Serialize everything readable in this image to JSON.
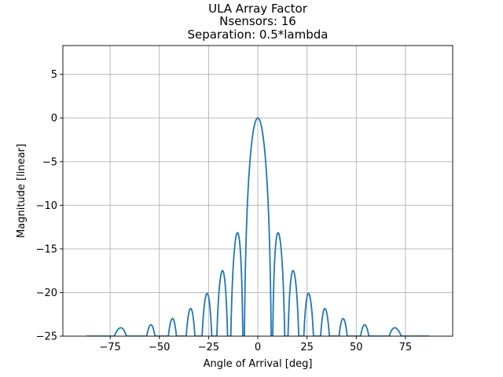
{
  "chart_data": {
    "type": "line",
    "title": [
      "ULA Array Factor",
      "Nsensors: 16",
      "Separation: 0.5*lambda"
    ],
    "xlabel": "Angle of Arrival [deg]",
    "ylabel": "Magnitude [linear]",
    "xlim": [
      -99,
      99
    ],
    "ylim": [
      -25,
      8.3
    ],
    "xticks": [
      -75,
      -50,
      -25,
      0,
      25,
      50,
      75
    ],
    "yticks": [
      -25,
      -20,
      -15,
      -10,
      -5,
      0,
      5
    ],
    "xtick_labels": [
      "−75",
      "−50",
      "−25",
      "0",
      "25",
      "50",
      "75"
    ],
    "ytick_labels": [
      "−25",
      "−20",
      "−15",
      "−10",
      "−5",
      "0",
      "5"
    ],
    "grid": true,
    "series": [
      {
        "color": "#1f77b4",
        "nsensors": 16,
        "separation_wavelengths": 0.5,
        "x_range": [
          -87,
          87
        ],
        "x_step": 0.05
      }
    ]
  }
}
